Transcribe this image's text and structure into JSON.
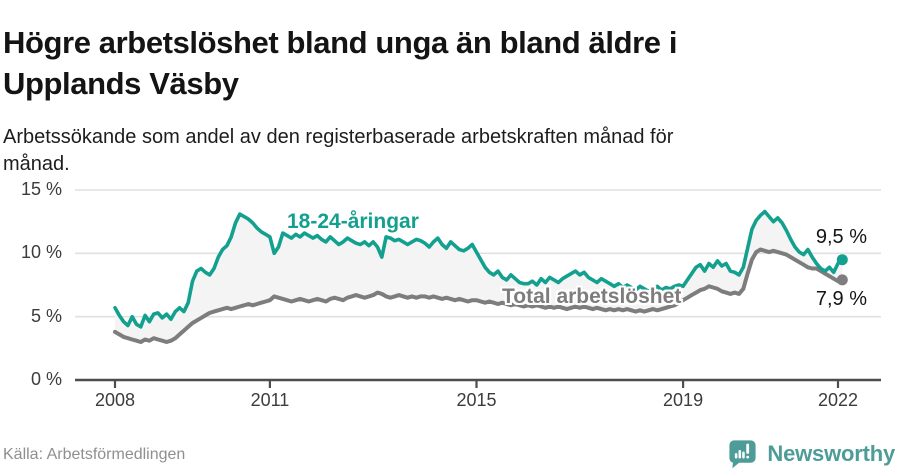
{
  "header": {
    "title": "Högre arbetslöshet bland unga än bland äldre i\nUpplands Väsby",
    "subtitle": "Arbetssökande som andel av den registerbaserade arbetskraften månad för\nmånad."
  },
  "footer": {
    "source": "Källa: Arbetsförmedlingen",
    "brand": "Newsworthy",
    "brand_color": "#4e9c98"
  },
  "chart_data": {
    "type": "line",
    "title": "Högre arbetslöshet bland unga än bland äldre i Upplands Väsby",
    "xlabel": "",
    "ylabel": "Arbetssökande som andel av den registerbaserade arbetskraften",
    "ylim": [
      0,
      15
    ],
    "grid": "horizontal",
    "frequency": "monthly",
    "x_start_year": 2008,
    "yticks": [
      {
        "value": 0,
        "label": "0 %"
      },
      {
        "value": 5,
        "label": "5 %"
      },
      {
        "value": 10,
        "label": "10 %"
      },
      {
        "value": 15,
        "label": "15 %"
      }
    ],
    "xticks": [
      {
        "year": 2008,
        "label": "2008"
      },
      {
        "year": 2011,
        "label": "2011"
      },
      {
        "year": 2015,
        "label": "2015"
      },
      {
        "year": 2019,
        "label": "2019"
      },
      {
        "year": 2022,
        "label": "2022"
      }
    ],
    "fill_between_color": "#f4f4f4",
    "axis_color": "#4d4d4d",
    "grid_color": "#e0e0e0",
    "series": [
      {
        "name": "18-24-åringar",
        "color": "#13a08f",
        "end_label": "9,5 %",
        "end_value": 9.5,
        "values": [
          5.7,
          5.1,
          4.6,
          4.3,
          5.0,
          4.4,
          4.2,
          5.1,
          4.6,
          5.2,
          5.3,
          4.9,
          5.2,
          4.8,
          5.4,
          5.7,
          5.4,
          6.1,
          7.8,
          8.6,
          8.8,
          8.5,
          8.3,
          8.8,
          9.7,
          10.3,
          10.6,
          11.3,
          12.4,
          13.1,
          12.9,
          12.7,
          12.4,
          12.0,
          11.7,
          11.5,
          11.3,
          10.0,
          10.5,
          11.6,
          11.4,
          11.2,
          11.5,
          11.3,
          11.6,
          11.4,
          11.2,
          11.4,
          11.1,
          10.9,
          11.3,
          11.0,
          10.7,
          10.9,
          11.2,
          11.0,
          10.8,
          10.7,
          10.9,
          10.6,
          10.9,
          10.5,
          9.7,
          11.3,
          11.2,
          11.0,
          11.1,
          10.9,
          10.7,
          10.9,
          11.1,
          11.0,
          10.8,
          10.5,
          10.9,
          11.2,
          10.7,
          10.4,
          10.9,
          10.6,
          10.3,
          10.2,
          10.4,
          10.7,
          10.1,
          9.5,
          8.9,
          8.5,
          8.3,
          8.6,
          8.1,
          7.9,
          8.3,
          8.0,
          7.7,
          7.6,
          7.6,
          7.8,
          7.5,
          8.0,
          7.7,
          8.1,
          7.9,
          7.7,
          8.0,
          8.2,
          8.4,
          8.6,
          8.3,
          8.5,
          8.1,
          7.9,
          7.7,
          8.0,
          7.8,
          7.6,
          7.4,
          7.6,
          7.3,
          7.5,
          7.3,
          7.1,
          7.4,
          7.2,
          7.0,
          7.2,
          7.4,
          7.1,
          7.3,
          7.2,
          7.4,
          7.5,
          7.4,
          7.9,
          8.4,
          8.9,
          9.1,
          8.6,
          9.2,
          8.9,
          9.4,
          9.0,
          9.2,
          8.6,
          8.5,
          8.3,
          8.9,
          10.4,
          11.9,
          12.6,
          13.0,
          13.3,
          12.9,
          12.5,
          12.8,
          12.4,
          11.8,
          11.1,
          10.5,
          10.1,
          9.9,
          10.3,
          9.7,
          9.2,
          8.8,
          8.6,
          8.9,
          8.5,
          9.2,
          9.5
        ]
      },
      {
        "name": "Total arbetslöshet",
        "color": "#7d7d7d",
        "end_label": "7,9 %",
        "end_value": 7.9,
        "values": [
          3.8,
          3.6,
          3.4,
          3.3,
          3.2,
          3.1,
          3.0,
          3.2,
          3.1,
          3.3,
          3.2,
          3.1,
          3.0,
          3.1,
          3.3,
          3.6,
          3.9,
          4.2,
          4.5,
          4.7,
          4.9,
          5.1,
          5.3,
          5.4,
          5.5,
          5.6,
          5.7,
          5.6,
          5.7,
          5.8,
          5.9,
          6.0,
          5.9,
          6.0,
          6.1,
          6.2,
          6.3,
          6.6,
          6.5,
          6.4,
          6.3,
          6.2,
          6.3,
          6.4,
          6.3,
          6.2,
          6.3,
          6.4,
          6.3,
          6.2,
          6.4,
          6.5,
          6.4,
          6.3,
          6.5,
          6.6,
          6.7,
          6.6,
          6.5,
          6.6,
          6.7,
          6.9,
          6.8,
          6.6,
          6.5,
          6.6,
          6.7,
          6.6,
          6.5,
          6.6,
          6.5,
          6.6,
          6.6,
          6.5,
          6.6,
          6.5,
          6.4,
          6.5,
          6.4,
          6.3,
          6.4,
          6.3,
          6.2,
          6.3,
          6.3,
          6.2,
          6.1,
          6.2,
          6.1,
          6.0,
          6.1,
          6.0,
          5.9,
          6.0,
          5.9,
          5.8,
          5.9,
          5.8,
          5.9,
          5.8,
          5.7,
          5.8,
          5.7,
          5.8,
          5.7,
          5.6,
          5.7,
          5.8,
          5.7,
          5.8,
          5.7,
          5.6,
          5.7,
          5.6,
          5.5,
          5.6,
          5.5,
          5.6,
          5.5,
          5.6,
          5.5,
          5.4,
          5.5,
          5.4,
          5.5,
          5.6,
          5.5,
          5.6,
          5.7,
          5.8,
          5.9,
          6.1,
          6.3,
          6.5,
          6.7,
          6.9,
          7.1,
          7.2,
          7.4,
          7.3,
          7.2,
          7.0,
          6.9,
          6.8,
          6.9,
          6.8,
          7.2,
          8.4,
          9.5,
          10.1,
          10.3,
          10.2,
          10.1,
          10.2,
          10.1,
          10.0,
          9.9,
          9.7,
          9.5,
          9.3,
          9.1,
          8.9,
          8.8,
          8.8,
          8.6,
          8.4,
          8.2,
          8.0,
          7.8,
          7.9
        ]
      }
    ]
  }
}
